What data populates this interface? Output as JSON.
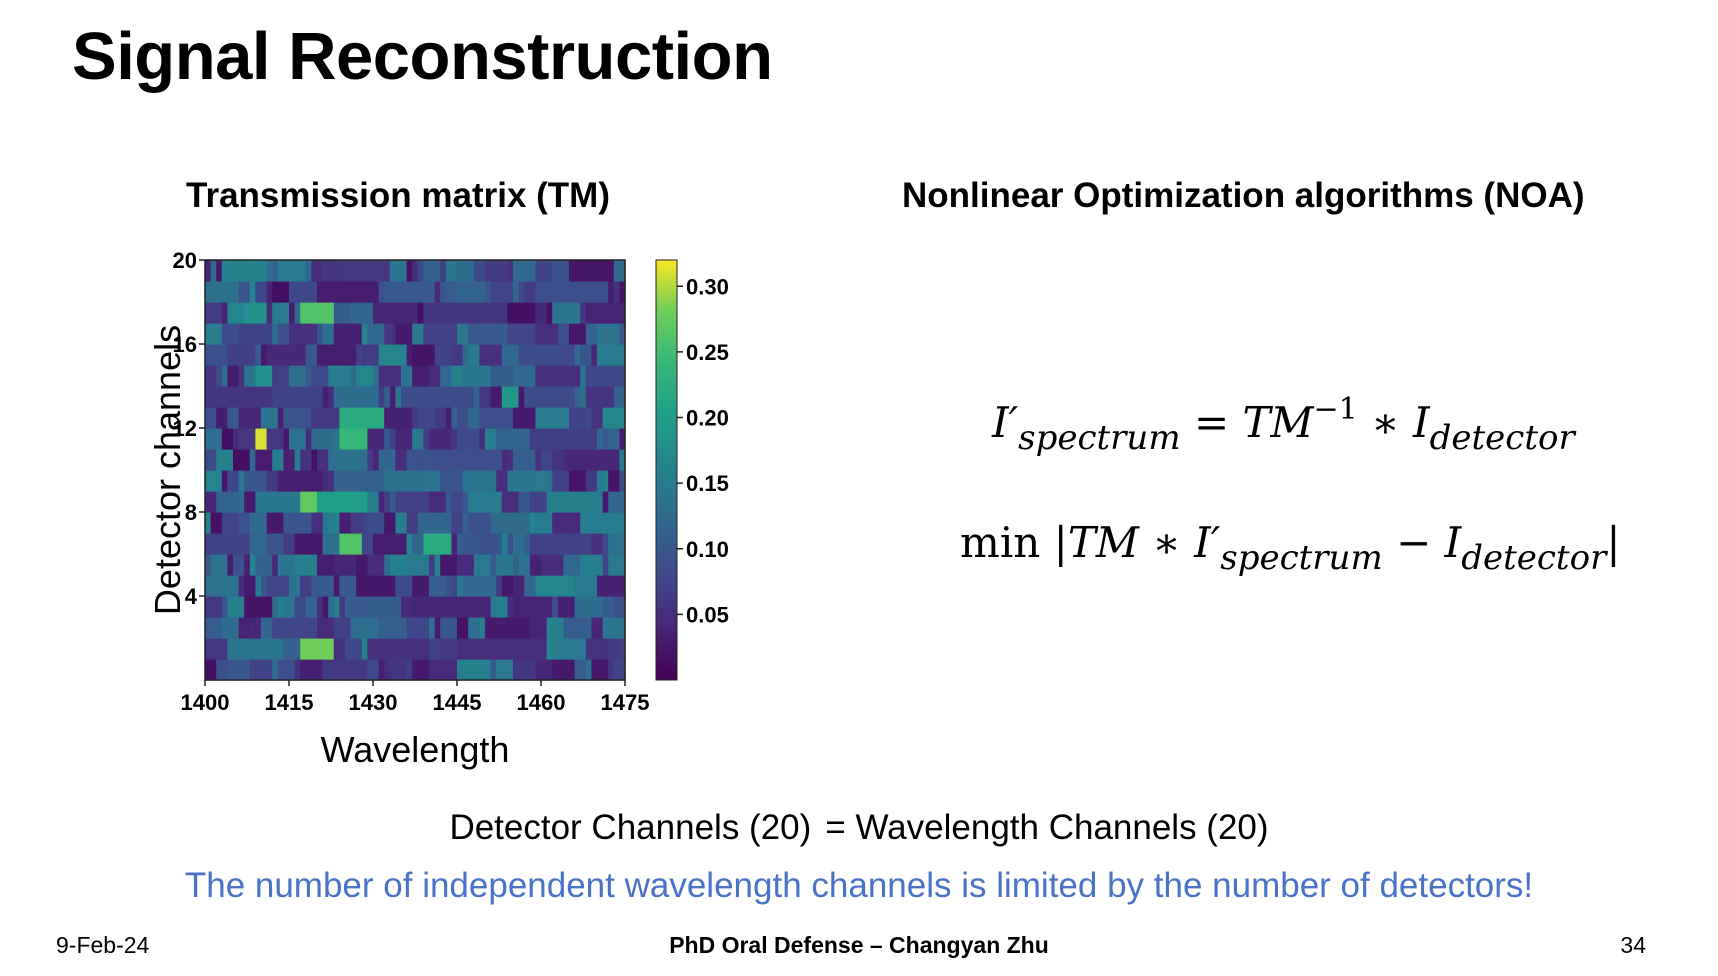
{
  "slide": {
    "title": "Signal Reconstruction",
    "footer_date": "9-Feb-24",
    "footer_center": "PhD Oral Defense – Changyan Zhu",
    "page_number": "34"
  },
  "sections": {
    "tm_title": "Transmission matrix (TM)",
    "noa_title": "Nonlinear Optimization algorithms (NOA)"
  },
  "equations": {
    "eq1": {
      "lhs_symbol": "I′",
      "lhs_sub": "spectrum",
      "equals": "=",
      "tm": "TM",
      "exponent": "−1",
      "operator": "∗",
      "rhs_symbol": "I",
      "rhs_sub": "detector"
    },
    "eq2": {
      "min": "min",
      "bar_open": "|",
      "tm": "TM",
      "operator": "∗",
      "symbol": "I′",
      "sub1": "spectrum",
      "minus": "−",
      "symbol2": "I",
      "sub2": "detector",
      "bar_close": "|"
    }
  },
  "text": {
    "equality_left": "Detector Channels (20)",
    "equality_right": "= Wavelength Channels (20)",
    "limit_note": "The number of independent wavelength channels is limited by the number of detectors!"
  },
  "colors": {
    "note_blue": "#4a73c7",
    "viridis_low": "#440154",
    "viridis_high": "#fde725"
  },
  "chart_data": {
    "type": "heatmap",
    "title": "",
    "xlabel": "Wavelength",
    "ylabel": "Detector channels",
    "x_range": [
      1400,
      1475
    ],
    "y_range": [
      0,
      20
    ],
    "x_ticks": [
      1400,
      1415,
      1430,
      1445,
      1460,
      1475
    ],
    "y_ticks": [
      4,
      8,
      12,
      16,
      20
    ],
    "colormap": "viridis",
    "colorbar": {
      "min": 0.0,
      "max": 0.32,
      "ticks": [
        0.05,
        0.1,
        0.15,
        0.2,
        0.25,
        0.3
      ],
      "tick_labels": [
        "0.05",
        "0.10",
        "0.15",
        "0.20",
        "0.25",
        "0.30"
      ]
    },
    "n_rows": 20,
    "n_cols": 75,
    "highlights": [
      {
        "row": 12,
        "x_start": 1409,
        "x_end": 1410,
        "value": 0.31
      },
      {
        "row": 12,
        "x_start": 1424,
        "x_end": 1428,
        "value": 0.24
      },
      {
        "row": 13,
        "x_start": 1424,
        "x_end": 1431,
        "value": 0.22
      },
      {
        "row": 18,
        "x_start": 1417,
        "x_end": 1422,
        "value": 0.26
      },
      {
        "row": 18,
        "x_start": 1407,
        "x_end": 1410,
        "value": 0.18
      },
      {
        "row": 9,
        "x_start": 1417,
        "x_end": 1419,
        "value": 0.27
      },
      {
        "row": 9,
        "x_start": 1420,
        "x_end": 1428,
        "value": 0.2
      },
      {
        "row": 7,
        "x_start": 1424,
        "x_end": 1427,
        "value": 0.26
      },
      {
        "row": 7,
        "x_start": 1439,
        "x_end": 1443,
        "value": 0.22
      },
      {
        "row": 2,
        "x_start": 1417,
        "x_end": 1422,
        "value": 0.28
      },
      {
        "row": 15,
        "x_start": 1409,
        "x_end": 1411,
        "value": 0.18
      },
      {
        "row": 16,
        "x_start": 1470,
        "x_end": 1475,
        "value": 0.15
      },
      {
        "row": 14,
        "x_start": 1453,
        "x_end": 1455,
        "value": 0.19
      }
    ]
  }
}
